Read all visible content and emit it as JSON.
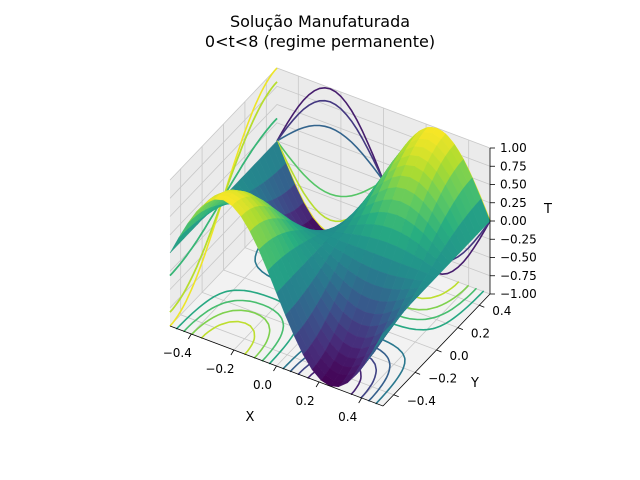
{
  "chart_data": {
    "type": "surface3d",
    "title": "Solução Manufaturada",
    "subtitle": "0<t<8 (regime permanente)",
    "xlabel": "X",
    "ylabel": "Y",
    "zlabel": "T",
    "xlim": [
      -0.5,
      0.5
    ],
    "ylim": [
      -0.5,
      0.5
    ],
    "zlim": [
      -1.0,
      1.0
    ],
    "x_ticks": [
      "−0.4",
      "−0.2",
      "0.0",
      "0.2",
      "0.4"
    ],
    "y_ticks": [
      "−0.4",
      "−0.2",
      "0.0",
      "0.2",
      "0.4"
    ],
    "z_ticks": [
      "−1.00",
      "−0.75",
      "−0.50",
      "−0.25",
      "0.00",
      "0.25",
      "0.50",
      "0.75",
      "1.00"
    ],
    "colormap": "viridis",
    "surface_function": "T = sin(2*pi*x) * sin(pi*y)",
    "grid": true
  }
}
